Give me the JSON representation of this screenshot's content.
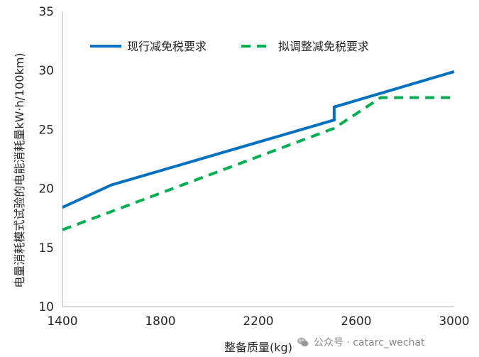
{
  "chart_data": {
    "type": "line",
    "xlabel": "整备质量(kg)",
    "ylabel": "电量消耗模式试验的电能消耗量kW·h/100km)",
    "xlim": [
      1400,
      3000
    ],
    "ylim": [
      10,
      35
    ],
    "x_ticks": [
      "1400",
      "1800",
      "2200",
      "2600",
      "3000"
    ],
    "y_ticks": [
      "10",
      "15",
      "20",
      "25",
      "30",
      "35"
    ],
    "grid": false,
    "legend_position": "top",
    "series": [
      {
        "name": "现行减免税要求",
        "style": "solid",
        "color": "#0070C0",
        "points": [
          [
            1400,
            18.4
          ],
          [
            1600,
            20.3
          ],
          [
            2510,
            25.8
          ],
          [
            2510,
            26.9
          ],
          [
            3000,
            29.9
          ]
        ]
      },
      {
        "name": "拟调整减免税要求",
        "style": "dashed",
        "color": "#00B050",
        "points": [
          [
            1400,
            16.5
          ],
          [
            2510,
            25.1
          ],
          [
            2700,
            27.7
          ],
          [
            3000,
            27.7
          ]
        ]
      }
    ]
  },
  "watermark": {
    "text": "公众号 · catarc_wechat",
    "icon": "wechat-icon"
  }
}
